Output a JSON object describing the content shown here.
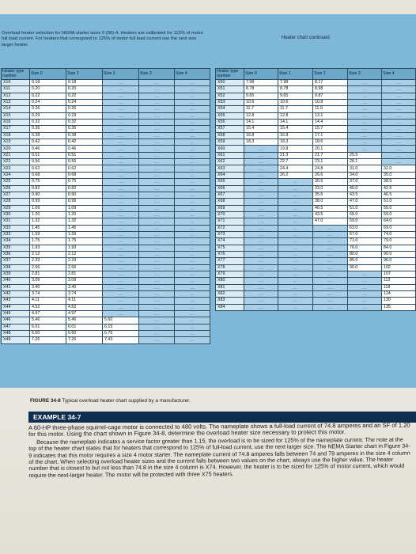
{
  "left_caption": "Overload heater selection for NEMA starter sizes 0 (00)-4. Heaters are calibrated for 115% of motor full load current. For heaters that correspond to 125% of motor full load current use the next size larger heater.",
  "right_caption": "Heater chart continued",
  "headers": {
    "heater_type": "Heater type number",
    "size0": "Size 0",
    "size1": "Size 1",
    "size2": "Size 2",
    "size3": "Size 3",
    "size4": "Size 4"
  },
  "left_rows": [
    {
      "hp": "X10",
      "s0": "0.18",
      "s1": "0.18"
    },
    {
      "hp": "X11",
      "s0": "0.20",
      "s1": "0.20"
    },
    {
      "hp": "X12",
      "s0": "0.22",
      "s1": "0.22"
    },
    {
      "hp": "X13",
      "s0": "0.24",
      "s1": "0.24"
    },
    {
      "hp": "X14",
      "s0": "0.26",
      "s1": "0.26"
    },
    {
      "hp": "X15",
      "s0": "0.29",
      "s1": "0.29"
    },
    {
      "hp": "X16",
      "s0": "0.32",
      "s1": "0.32"
    },
    {
      "hp": "X17",
      "s0": "0.35",
      "s1": "0.35"
    },
    {
      "hp": "X18",
      "s0": "0.38",
      "s1": "0.38"
    },
    {
      "hp": "X19",
      "s0": "0.42",
      "s1": "0.42"
    },
    {
      "hp": "X20",
      "s0": "0.46",
      "s1": "0.46"
    },
    {
      "hp": "X21",
      "s0": "0.51",
      "s1": "0.51"
    },
    {
      "hp": "X22",
      "s0": "0.56",
      "s1": "0.56"
    },
    {
      "hp": "X23",
      "s0": "0.62",
      "s1": "0.62"
    },
    {
      "hp": "X24",
      "s0": "0.68",
      "s1": "0.68"
    },
    {
      "hp": "X25",
      "s0": "0.75",
      "s1": "0.75"
    },
    {
      "hp": "X26",
      "s0": "0.82",
      "s1": "0.82"
    },
    {
      "hp": "X27",
      "s0": "0.90",
      "s1": "0.90"
    },
    {
      "hp": "X28",
      "s0": "0.99",
      "s1": "0.99"
    },
    {
      "hp": "X29",
      "s0": "1.09",
      "s1": "1.09"
    },
    {
      "hp": "X30",
      "s0": "1.20",
      "s1": "1.20"
    },
    {
      "hp": "X31",
      "s0": "1.32",
      "s1": "1.32"
    },
    {
      "hp": "X32",
      "s0": "1.45",
      "s1": "1.45"
    },
    {
      "hp": "X33",
      "s0": "1.59",
      "s1": "1.59"
    },
    {
      "hp": "X34",
      "s0": "1.75",
      "s1": "1.75"
    },
    {
      "hp": "X35",
      "s0": "1.93",
      "s1": "1.93"
    },
    {
      "hp": "X36",
      "s0": "2.12",
      "s1": "2.12"
    },
    {
      "hp": "X37",
      "s0": "2.33",
      "s1": "2.33"
    },
    {
      "hp": "X38",
      "s0": "2.56",
      "s1": "2.56"
    },
    {
      "hp": "X39",
      "s0": "2.81",
      "s1": "2.81"
    },
    {
      "hp": "X40",
      "s0": "3.09",
      "s1": "3.09"
    },
    {
      "hp": "X41",
      "s0": "3.40",
      "s1": "3.40"
    },
    {
      "hp": "X42",
      "s0": "3.74",
      "s1": "3.74"
    },
    {
      "hp": "X43",
      "s0": "4.11",
      "s1": "4.11"
    },
    {
      "hp": "X44",
      "s0": "4.52",
      "s1": "4.52"
    },
    {
      "hp": "X45",
      "s0": "4.97",
      "s1": "4.97"
    },
    {
      "hp": "X46",
      "s0": "5.46",
      "s1": "5.46",
      "s2": "5.60"
    },
    {
      "hp": "X47",
      "s0": "6.01",
      "s1": "6.01",
      "s2": "6.15"
    },
    {
      "hp": "X48",
      "s0": "6.60",
      "s1": "6.60",
      "s2": "6.76"
    },
    {
      "hp": "X49",
      "s0": "7.26",
      "s1": "7.26",
      "s2": "7.43"
    }
  ],
  "right_rows": [
    {
      "hp": "X50",
      "s0": "7.98",
      "s1": "7.98",
      "s2": "8.17"
    },
    {
      "hp": "X51",
      "s0": "8.78",
      "s1": "8.78",
      "s2": "8.98"
    },
    {
      "hp": "X52",
      "s0": "9.65",
      "s1": "9.65",
      "s2": "9.87"
    },
    {
      "hp": "X53",
      "s0": "10.6",
      "s1": "10.6",
      "s2": "10.8"
    },
    {
      "hp": "X54",
      "s0": "11.7",
      "s1": "11.7",
      "s2": "11.9"
    },
    {
      "hp": "X55",
      "s0": "12.8",
      "s1": "12.8",
      "s2": "13.1"
    },
    {
      "hp": "X56",
      "s0": "14.1",
      "s1": "14.1",
      "s2": "14.4"
    },
    {
      "hp": "X57",
      "s0": "15.4",
      "s1": "15.4",
      "s2": "15.7"
    },
    {
      "hp": "X58",
      "s0": "16.8",
      "s1": "16.8",
      "s2": "17.1"
    },
    {
      "hp": "X59",
      "s0": "18.3",
      "s1": "18.3",
      "s2": "18.6"
    },
    {
      "hp": "X60",
      "s1": "19.8",
      "s2": "20.1"
    },
    {
      "hp": "X61",
      "s1": "21.3",
      "s2": "21.7",
      "s3": "25.5"
    },
    {
      "hp": "X62",
      "s1": "22.7",
      "s2": "23.1",
      "s3": "28.1"
    },
    {
      "hp": "X63",
      "s1": "24.4",
      "s2": "24.8",
      "s3": "31.0",
      "s4": "32.0"
    },
    {
      "hp": "X64",
      "s1": "26.2",
      "s2": "26.6",
      "s3": "34.0",
      "s4": "35.0"
    },
    {
      "hp": "X65",
      "s2": "30.5",
      "s3": "37.0",
      "s4": "38.5"
    },
    {
      "hp": "X66",
      "s2": "33.0",
      "s3": "40.0",
      "s4": "42.5"
    },
    {
      "hp": "X67",
      "s2": "35.5",
      "s3": "43.5",
      "s4": "46.5"
    },
    {
      "hp": "X68",
      "s2": "38.0",
      "s3": "47.0",
      "s4": "51.0"
    },
    {
      "hp": "X69",
      "s2": "40.5",
      "s3": "51.0",
      "s4": "55.0"
    },
    {
      "hp": "X70",
      "s2": "43.5",
      "s3": "55.0",
      "s4": "59.0"
    },
    {
      "hp": "X71",
      "s2": "47.0",
      "s3": "59.0",
      "s4": "64.0"
    },
    {
      "hp": "X72",
      "s3": "63.0",
      "s4": "69.0"
    },
    {
      "hp": "X73",
      "s3": "67.0",
      "s4": "74.0"
    },
    {
      "hp": "X74",
      "s3": "71.0",
      "s4": "79.0"
    },
    {
      "hp": "X75",
      "s3": "76.0",
      "s4": "84.0"
    },
    {
      "hp": "X76",
      "s3": "80.0",
      "s4": "90.0"
    },
    {
      "hp": "X77",
      "s3": "85.0",
      "s4": "96.0"
    },
    {
      "hp": "X78",
      "s3": "90.0",
      "s4": "102"
    },
    {
      "hp": "X79",
      "s4": "107"
    },
    {
      "hp": "X80",
      "s4": "113"
    },
    {
      "hp": "X81",
      "s4": "118"
    },
    {
      "hp": "X82",
      "s4": "124"
    },
    {
      "hp": "X83",
      "s4": "130"
    },
    {
      "hp": "X84",
      "s4": "135"
    }
  ],
  "figure_caption": {
    "label": "FIGURE 34-8",
    "text": "Typical overload heater chart supplied by a manufacturer."
  },
  "example": {
    "title": "EXAMPLE 34-7",
    "paragraphs": [
      "A 60-HP three-phase squirrel-cage motor is connected to 480 volts. The nameplate shows a full-load current of 74.8 amperes and an SF of 1.20 for this motor. Using the chart shown in Figure 34-8, determine the overload heater size necessary to protect this motor.",
      "Because the nameplate indicates a service factor greater than 1.15, the overload is to be sized for 125% of the nameplate current. The note at the top of the heater chart states that for heaters that correspond to 125% of full-load current, use the next larger size. The NEMA Starter chart in Figure 34-9 indicates that this motor requires a size 4 motor starter. The nameplate current of 74.8 amperes falls between 74 and 79 amperes in the size 4 column of the chart. When selecting overload heater sizes and the current falls between two values on the chart, always use the higher value. The heater number that is closest to but not less than 74.8 in the size 4 column is X74. However, the heater is to be sized for 125% of motor current, which would require the next-larger heater. The motor will be protected with three X75 heaters."
    ]
  }
}
